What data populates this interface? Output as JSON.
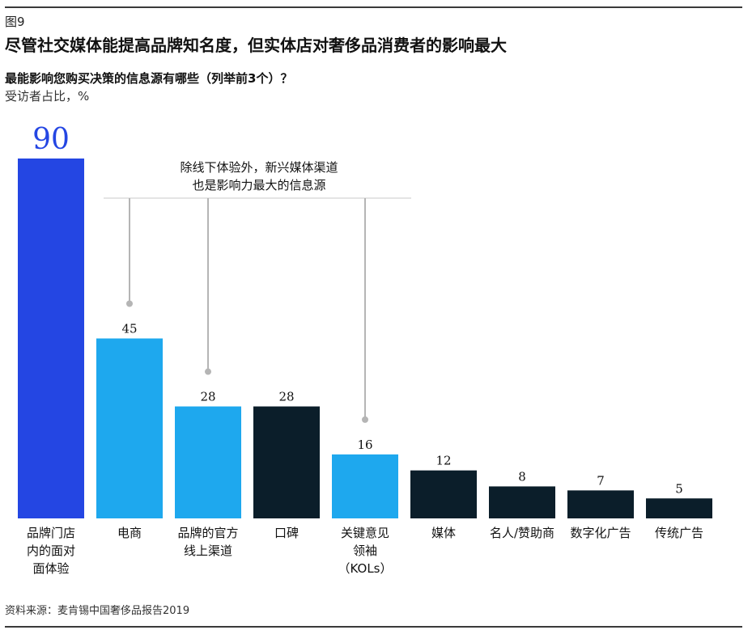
{
  "figure_label": "图9",
  "title": "尽管社交媒体能提高品牌知名度，但实体店对奢侈品消费者的影响最大",
  "question": "最能影响您购买决策的信息源有哪些（列举前3个）？",
  "unit_note": "受访者占比，%",
  "annotation": [
    "除线下体验外，新兴媒体渠道",
    "也是影响力最大的信息源"
  ],
  "source": "资料来源：麦肯锡中国奢侈品报告2019",
  "colors": {
    "highlight": "#2446e3",
    "emerging": "#1ea8ee",
    "other": "#0b1e2a",
    "connector": "#b5b5b5"
  },
  "chart_data": {
    "type": "bar",
    "title": "",
    "xlabel": "",
    "ylabel": "",
    "ylim": [
      0,
      90
    ],
    "grid": false,
    "categories": [
      "品牌门店\n内的面对\n面体验",
      "电商",
      "品牌的官方\n线上渠道",
      "口碑",
      "关键意见\n领袖\n（KOLs）",
      "媒体",
      "名人/赞助商",
      "数字化广告",
      "传统广告"
    ],
    "values": [
      90,
      45,
      28,
      28,
      16,
      12,
      8,
      7,
      5
    ],
    "value_labels": [
      "90",
      "45",
      "28",
      "28",
      "16",
      "12",
      "8",
      "7",
      "5"
    ],
    "bar_groups": [
      "highlight",
      "emerging",
      "emerging",
      "other",
      "emerging",
      "other",
      "other",
      "other",
      "other"
    ],
    "annotated_bars": [
      1,
      2,
      4
    ]
  }
}
